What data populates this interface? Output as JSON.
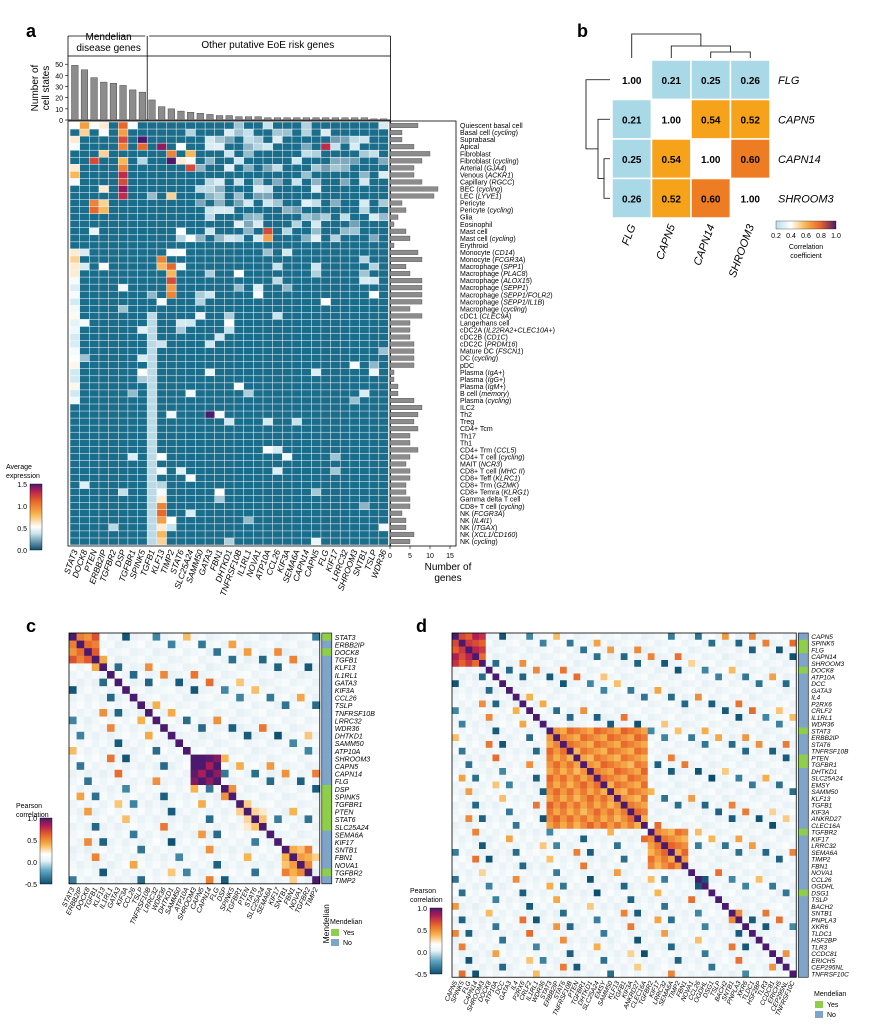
{
  "panel_letters": {
    "a": "a",
    "b": "b",
    "c": "c",
    "d": "d"
  },
  "colors": {
    "teal": "#1b6d8c",
    "grey": "#8c8c8c",
    "yes": "#8fce4b",
    "no": "#7ea4c9",
    "purple": "#6a1a7a",
    "orange": "#f59a23"
  },
  "panel_a": {
    "group_labels": [
      "Mendelian\ndisease genes",
      "Other putative EoE risk genes"
    ],
    "top_ylabel": "Number of\ncell states",
    "right_xlabel": "Number of\ngenes",
    "legend_title": "Average\nexpression",
    "legend_ticks": [
      "0.0",
      "0.5",
      "1.0",
      "1.5"
    ],
    "top_ticks": [
      "0",
      "10",
      "20",
      "30",
      "40",
      "50"
    ],
    "right_ticks": [
      "0",
      "5",
      "10",
      "15"
    ],
    "genes": [
      "STAT3",
      "DOCK8",
      "PTEN",
      "ERBB2IP",
      "TGFBR2",
      "DSP",
      "TGFBR1",
      "SPINK5",
      "TGFB1",
      "KLF13",
      "TIMP2",
      "STAT6",
      "SLC25A24",
      "SAMM50",
      "GATA3",
      "FBN1",
      "DHTKD1",
      "TNFRSF10B",
      "IL1RL1",
      "NOVA1",
      "ATP10A",
      "CCL26",
      "KIF3A",
      "SEMA6A",
      "CAPN14",
      "CAPN5",
      "FLG",
      "KIF17",
      "LRRC32",
      "SHROOM3",
      "SNTB1",
      "TSLP",
      "WDR36"
    ],
    "cell_states": [
      "Quiescent basal cell",
      "Basal cell (cycling)",
      "Suprabasal",
      "Apical",
      "Fibroblast",
      "Fibroblast (cycling)",
      "Arterial (GJA4)",
      "Venous (ACKR1)",
      "Capillary (RGCC)",
      "BEC (cycling)",
      "LEC (LYVE1)",
      "Pericyte",
      "Pericyte (cycling)",
      "Glia",
      "Eosinophil",
      "Mast cell",
      "Mast cell (cycling)",
      "Erythroid",
      "Monocyte (CD14)",
      "Monocyte (FCGR3A)",
      "Macrophage (SPP1)",
      "Macrophage (PLAC8)",
      "Macrophage (ALOX15)",
      "Macrophage (SEPP1)",
      "Macrophage (SEPP1/FOLR2)",
      "Macrophage (SEPP1/IL1B)",
      "Macrophage (cycling)",
      "cDC1 (CLEC9A)",
      "Langerhans cell",
      "cDC2A (IL22RA2+CLEC10A+)",
      "cDC2B (CD1C)",
      "cDC2C (PRDM16)",
      "Mature DC (FSCN1)",
      "DC (cycling)",
      "pDC",
      "Plasma (IgA+)",
      "Plasma (IgG+)",
      "Plasma (IgM+)",
      "B cell (memory)",
      "Plasma (cycling)",
      "ILC2",
      "Th2",
      "Treg",
      "CD4+ Tcm",
      "Th17",
      "Th1",
      "CD4+ Trm (CCL5)",
      "CD4+ T cell (cycling)",
      "MAIT (NCR3)",
      "CD8+ T cell (MHC II)",
      "CD8+ Teff (KLRC1)",
      "CD8+ Trm (GZMK)",
      "CD8+ Temra (KLRG1)",
      "Gamma delta T cell",
      "CD8+ T cell (cycling)",
      "NK (FCGR3A)",
      "NK (IL4I1)",
      "NK (ITGAX)",
      "NK (XCL1/CD160)",
      "NK (cycling)"
    ]
  },
  "panel_b": {
    "genes": [
      "FLG",
      "CAPN5",
      "CAPN14",
      "SHROOM3"
    ],
    "legend_title": "Correlation\ncoefficient",
    "legend_ticks": [
      "0.2",
      "0.4",
      "0.6",
      "0.8",
      "1.0"
    ],
    "values": [
      [
        "1.00",
        "0.21",
        "0.25",
        "0.26"
      ],
      [
        "0.21",
        "1.00",
        "0.54",
        "0.52"
      ],
      [
        "0.25",
        "0.54",
        "1.00",
        "0.60"
      ],
      [
        "0.26",
        "0.52",
        "0.60",
        "1.00"
      ]
    ]
  },
  "panel_c": {
    "genes": [
      "STAT3",
      "ERBB2IP",
      "DOCK8",
      "TGFB1",
      "KLF13",
      "IL1RL1",
      "GATA3",
      "KIF3A",
      "CCL26",
      "TSLP",
      "TNFRSF10B",
      "LRRC32",
      "WDR36",
      "DHTKD1",
      "SAMM50",
      "ATP10A",
      "SHROOM3",
      "CAPN5",
      "CAPN14",
      "FLG",
      "DSP",
      "SPINK5",
      "TGFBR1",
      "PTEN",
      "STAT6",
      "SLC25A24",
      "SEMA6A",
      "KIF17",
      "SNTB1",
      "FBN1",
      "NOVA1",
      "TGFBR2",
      "TIMP2"
    ],
    "legend_title": "Pearson\ncorrelation",
    "legend_ticks": [
      "-0.5",
      "0.0",
      "0.5",
      "1.0"
    ],
    "side_label": "Mendelian",
    "mendelian_legend_title": "Mendelian",
    "mendelian_yes": "Yes",
    "mendelian_no": "No"
  },
  "panel_d": {
    "genes": [
      "CAPN5",
      "SPINK5",
      "FLG",
      "CAPN14",
      "SHROOM3",
      "DOCK8",
      "ATP10A",
      "DCC",
      "GATA3",
      "IL4",
      "P2RX6",
      "CRLF2",
      "IL1RL1",
      "WDR36",
      "STAT3",
      "ERBB2IP",
      "STAT6",
      "TNFRSF10B",
      "PTEN",
      "TGFBR1",
      "DHTKD1",
      "SLC25A24",
      "EMSY",
      "SAMM50",
      "KLF13",
      "TGFB1",
      "KIF3A",
      "ANKRD27",
      "CLEC16A",
      "TGFBR2",
      "KIF17",
      "LRRC32",
      "SEMA6A",
      "TIMP2",
      "FBN1",
      "NOVA1",
      "CCL26",
      "OGDHL",
      "DSG1",
      "TSLP",
      "BACH2",
      "SNTB1",
      "PNPLA3",
      "XKR6",
      "TLDC1",
      "HSF2BP",
      "TLR3",
      "CCDC81",
      "ERICH5",
      "CEP295NL",
      "TNFRSF10C"
    ],
    "legend_title": "Pearson\ncorrelation",
    "legend_ticks": [
      "-0.5",
      "0.0",
      "0.5",
      "1.0"
    ],
    "mendelian_legend_title": "Mendelian",
    "mendelian_yes": "Yes",
    "mendelian_no": "No"
  }
}
